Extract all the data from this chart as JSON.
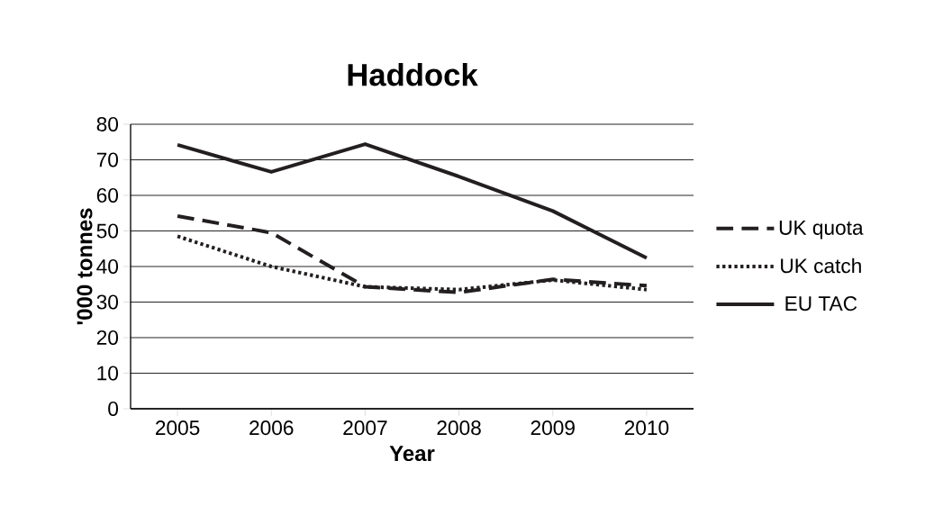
{
  "chart_data": {
    "type": "line",
    "title": "Haddock",
    "xlabel": "Year",
    "ylabel": "'000 tonnes",
    "categories": [
      "2005",
      "2006",
      "2007",
      "2008",
      "2009",
      "2010"
    ],
    "series": [
      {
        "name": "UK quota",
        "color": "#231f20",
        "line_style": "dashed",
        "values": [
          54.2,
          49.5,
          34.3,
          32.7,
          36.4,
          34.6
        ]
      },
      {
        "name": "UK catch",
        "color": "#231f20",
        "line_style": "dotted",
        "values": [
          48.5,
          40,
          34.3,
          33.5,
          36.2,
          33.5
        ]
      },
      {
        "name": "EU TAC",
        "color": "#231f20",
        "line_style": "solid",
        "values": [
          74.2,
          66.6,
          74.4,
          65.3,
          55.6,
          42.4
        ]
      }
    ],
    "ylim": [
      0,
      80
    ],
    "yticks": [
      0,
      10,
      20,
      30,
      40,
      50,
      60,
      70,
      80
    ],
    "grid": "y",
    "legend": "right"
  }
}
